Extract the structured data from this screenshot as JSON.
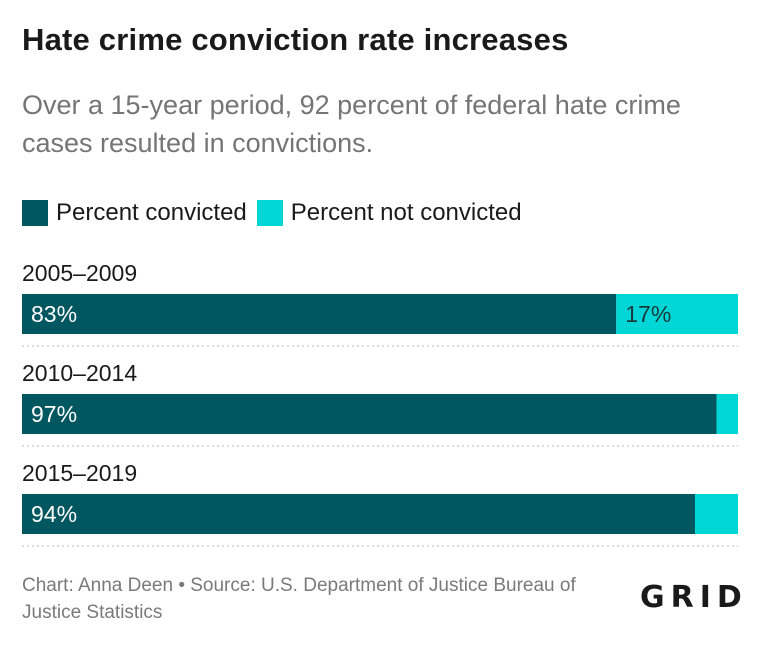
{
  "chart_data": {
    "type": "bar",
    "orientation": "horizontal",
    "stacked": true,
    "title": "Hate crime conviction rate increases",
    "subtitle": "Over a 15-year period, 92 percent of federal hate crime cases resulted in convictions.",
    "categories": [
      "2005–2009",
      "2010–2014",
      "2015–2019"
    ],
    "series": [
      {
        "name": "Percent convicted",
        "values": [
          83,
          97,
          94
        ],
        "labels": [
          "83%",
          "97%",
          "94%"
        ],
        "color": "#00575f"
      },
      {
        "name": "Percent not convicted",
        "values": [
          17,
          3,
          6
        ],
        "labels": [
          "17%",
          "",
          ""
        ],
        "color": "#00d6d6"
      }
    ],
    "xlim": [
      0,
      100
    ],
    "grid": false,
    "legend_position": "top-left"
  },
  "footer": {
    "source": "Chart: Anna Deen • Source: U.S. Department of Justice Bureau of Justice Statistics"
  },
  "brand": {
    "logo": "GRID"
  }
}
